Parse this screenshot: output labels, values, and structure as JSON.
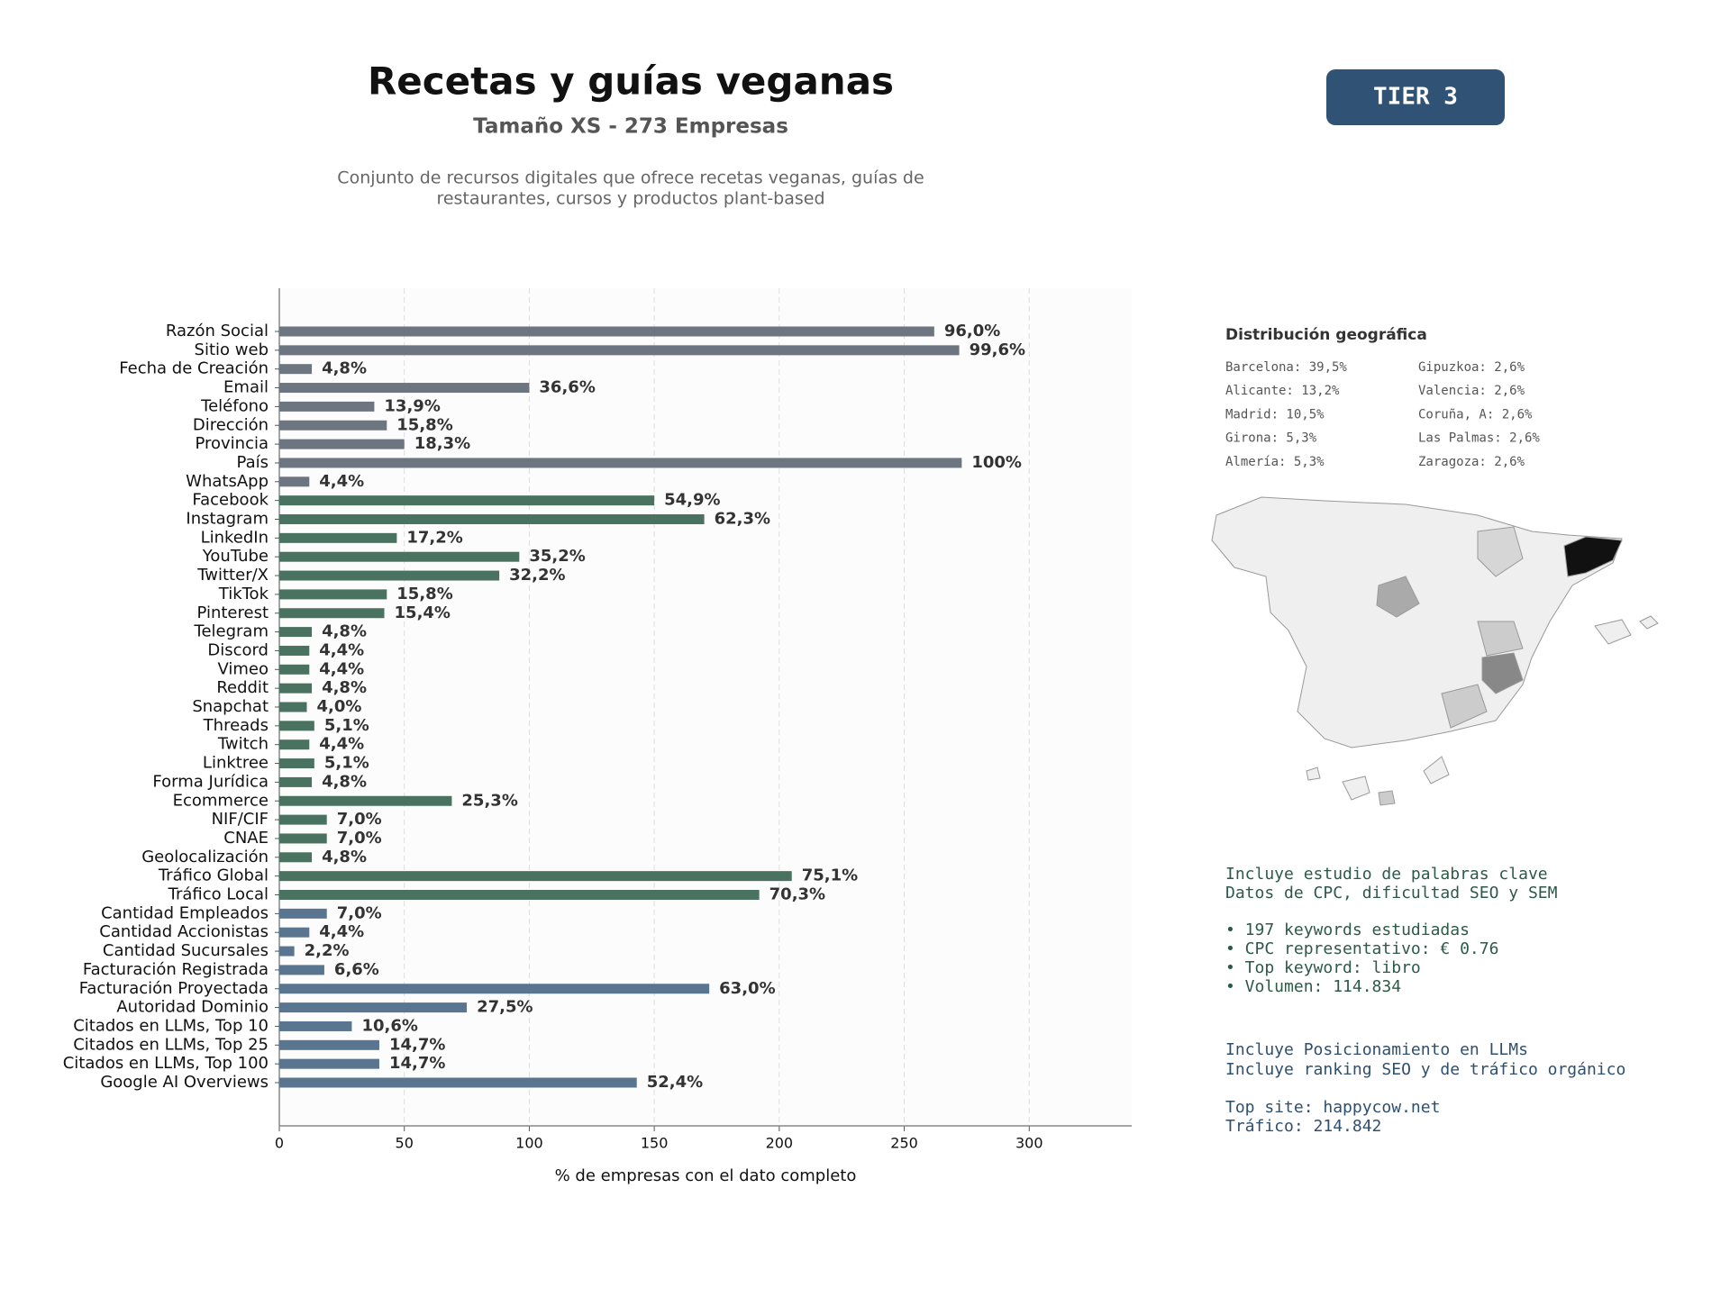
{
  "header": {
    "title": "Recetas y guías veganas",
    "subtitle": "Tamaño XS - 273 Empresas",
    "description": [
      "Conjunto de recursos digitales que ofrece recetas veganas, guías de",
      "restaurantes, cursos y productos plant-based"
    ]
  },
  "tier": "TIER 3",
  "chart_data": {
    "type": "barh",
    "categories": [
      "Razón Social",
      "Sitio web",
      "Fecha de Creación",
      "Email",
      "Teléfono",
      "Dirección",
      "Provincia",
      "País",
      "WhatsApp",
      "Facebook",
      "Instagram",
      "LinkedIn",
      "YouTube",
      "Twitter/X",
      "TikTok",
      "Pinterest",
      "Telegram",
      "Discord",
      "Vimeo",
      "Reddit",
      "Snapchat",
      "Threads",
      "Twitch",
      "Linktree",
      "Forma Jurídica",
      "Ecommerce",
      "NIF/CIF",
      "CNAE",
      "Geolocalización",
      "Tráfico Global",
      "Tráfico Local",
      "Cantidad Empleados",
      "Cantidad Accionistas",
      "Cantidad Sucursales",
      "Facturación Registrada",
      "Facturación Proyectada",
      "Autoridad Dominio",
      "Citados en LLMs, Top 10",
      "Citados en LLMs, Top 25",
      "Citados en LLMs, Top 100",
      "Google AI Overviews"
    ],
    "values": [
      262,
      272,
      13,
      100,
      38,
      43,
      50,
      273,
      12,
      150,
      170,
      47,
      96,
      88,
      43,
      42,
      13,
      12,
      12,
      13,
      11,
      14,
      12,
      14,
      13,
      69,
      19,
      19,
      13,
      205,
      192,
      19,
      12,
      6,
      18,
      172,
      75,
      29,
      40,
      40,
      143
    ],
    "value_labels": [
      "96,0%",
      "99,6%",
      "4,8%",
      "36,6%",
      "13,9%",
      "15,8%",
      "18,3%",
      "100%",
      "4,4%",
      "54,9%",
      "62,3%",
      "17,2%",
      "35,2%",
      "32,2%",
      "15,8%",
      "15,4%",
      "4,8%",
      "4,4%",
      "4,4%",
      "4,8%",
      "4,0%",
      "5,1%",
      "4,4%",
      "5,1%",
      "4,8%",
      "25,3%",
      "7,0%",
      "7,0%",
      "4,8%",
      "75,1%",
      "70,3%",
      "7,0%",
      "4,4%",
      "2,2%",
      "6,6%",
      "63,0%",
      "27,5%",
      "10,6%",
      "14,7%",
      "14,7%",
      "52,4%"
    ],
    "colors": [
      "#6c7580",
      "#6c7580",
      "#6c7580",
      "#6c7580",
      "#6c7580",
      "#6c7580",
      "#6c7580",
      "#6c7580",
      "#6c7580",
      "#4a7260",
      "#4a7260",
      "#4a7260",
      "#4a7260",
      "#4a7260",
      "#4a7260",
      "#4a7260",
      "#4a7260",
      "#4a7260",
      "#4a7260",
      "#4a7260",
      "#4a7260",
      "#4a7260",
      "#4a7260",
      "#4a7260",
      "#4a7260",
      "#4a7260",
      "#4a7260",
      "#4a7260",
      "#4a7260",
      "#4a7260",
      "#4a7260",
      "#5a7590",
      "#5a7590",
      "#5a7590",
      "#5a7590",
      "#5a7590",
      "#5a7590",
      "#5a7590",
      "#5a7590",
      "#5a7590",
      "#5a7590"
    ],
    "xlim": [
      0,
      341
    ],
    "xticks": [
      0,
      50,
      100,
      150,
      200,
      250,
      300
    ],
    "grid": true,
    "xlabel": "% de empresas con el dato completo"
  },
  "geo": {
    "title": "Distribución geográfica",
    "items": [
      "Barcelona: 39,5%",
      "Gipuzkoa: 2,6%",
      "Alicante: 13,2%",
      "Valencia: 2,6%",
      "Madrid: 10,5%",
      "Coruña, A: 2,6%",
      "Girona: 5,3%",
      "Las Palmas: 2,6%",
      "Almería: 5,3%",
      "Zaragoza: 2,6%"
    ]
  },
  "notes": {
    "seo_intro": [
      "Incluye estudio de palabras clave",
      "Datos de CPC, dificultad SEO y SEM"
    ],
    "seo_items": [
      "• 197 keywords estudiadas",
      "• CPC representativo: € 0.76",
      "• Top keyword: libro",
      "• Volumen: 114.834"
    ],
    "llm_intro": [
      "Incluye Posicionamiento en LLMs",
      "Incluye ranking SEO y de tráfico orgánico"
    ],
    "llm_site": [
      "Top site: happycow.net",
      "Tráfico: 214.842"
    ]
  }
}
